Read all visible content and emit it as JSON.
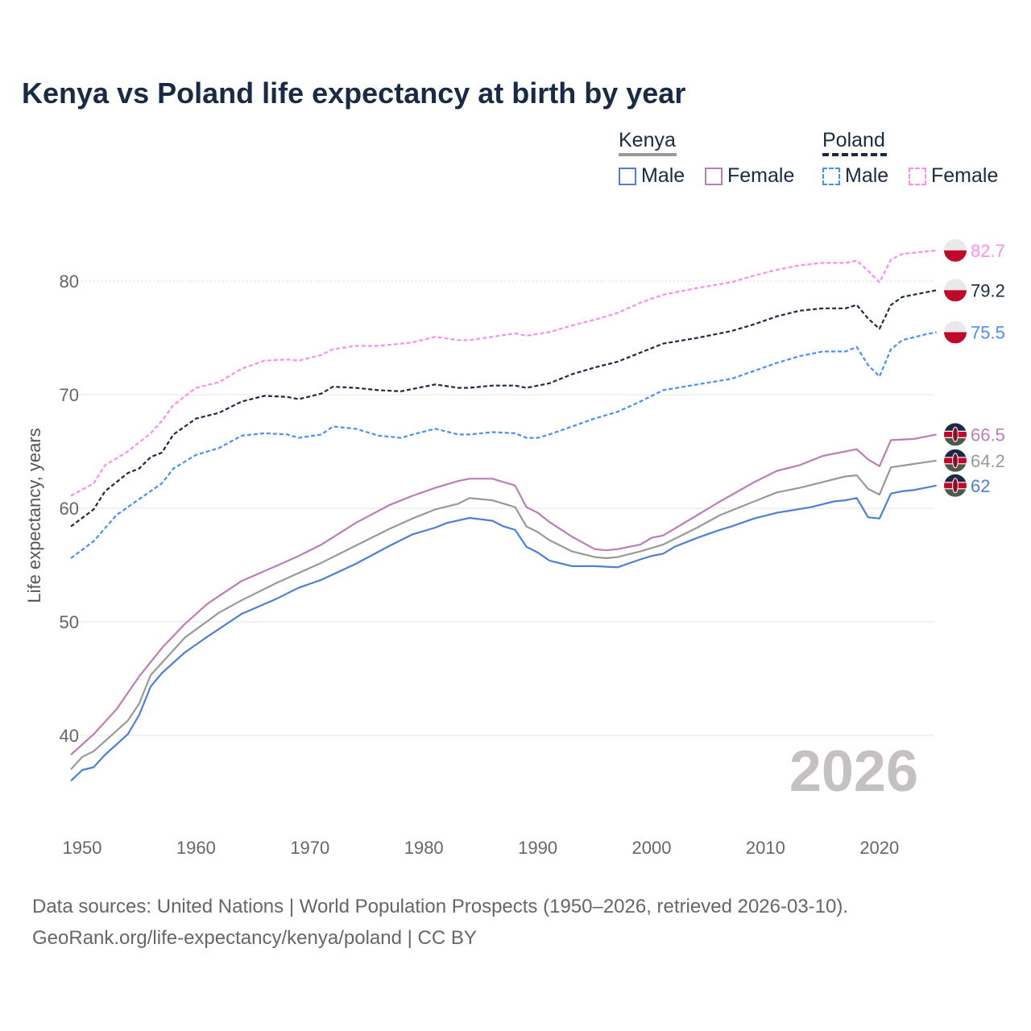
{
  "chart_data": {
    "type": "line",
    "title": "Kenya vs Poland life expectancy at birth by year",
    "ylabel": "Life expectancy, years",
    "xlabel": "",
    "xlim": [
      1950,
      2026
    ],
    "ylim": [
      33,
      86
    ],
    "x_ticks": [
      1950,
      1960,
      1970,
      1980,
      1990,
      2000,
      2010,
      2020
    ],
    "y_ticks": [
      40,
      50,
      60,
      70,
      80
    ],
    "grid": true,
    "year_watermark": "2026",
    "legend": {
      "placement": "top-right",
      "groups": [
        {
          "name": "Kenya",
          "items": [
            "Male",
            "Female"
          ]
        },
        {
          "name": "Poland",
          "items": [
            "Male",
            "Female"
          ]
        }
      ]
    },
    "series": [
      {
        "name": "Poland Female",
        "country": "Poland",
        "color": "#f98ff0",
        "dashed": true,
        "end_label": "82.7",
        "points": [
          [
            1950,
            61.1
          ],
          [
            1952,
            62.2
          ],
          [
            1953,
            63.8
          ],
          [
            1955,
            65.0
          ],
          [
            1957,
            66.6
          ],
          [
            1958,
            67.7
          ],
          [
            1959,
            69.1
          ],
          [
            1961,
            70.6
          ],
          [
            1963,
            71.1
          ],
          [
            1965,
            72.3
          ],
          [
            1967,
            73.0
          ],
          [
            1969,
            73.1
          ],
          [
            1970,
            73.0
          ],
          [
            1972,
            73.5
          ],
          [
            1973,
            74.0
          ],
          [
            1975,
            74.3
          ],
          [
            1977,
            74.3
          ],
          [
            1979,
            74.5
          ],
          [
            1980,
            74.6
          ],
          [
            1982,
            75.1
          ],
          [
            1984,
            74.8
          ],
          [
            1985,
            74.8
          ],
          [
            1987,
            75.1
          ],
          [
            1989,
            75.4
          ],
          [
            1990,
            75.2
          ],
          [
            1992,
            75.5
          ],
          [
            1994,
            76.1
          ],
          [
            1996,
            76.6
          ],
          [
            1998,
            77.2
          ],
          [
            2000,
            78.1
          ],
          [
            2002,
            78.8
          ],
          [
            2005,
            79.4
          ],
          [
            2008,
            79.9
          ],
          [
            2010,
            80.5
          ],
          [
            2012,
            81.0
          ],
          [
            2014,
            81.4
          ],
          [
            2016,
            81.6
          ],
          [
            2018,
            81.6
          ],
          [
            2019,
            81.8
          ],
          [
            2020,
            80.9
          ],
          [
            2021,
            79.9
          ],
          [
            2022,
            81.9
          ],
          [
            2023,
            82.4
          ],
          [
            2025,
            82.6
          ],
          [
            2026,
            82.7
          ]
        ]
      },
      {
        "name": "Poland",
        "country": "Poland",
        "color": "#1b2a44",
        "dashed": true,
        "end_label": "79.2",
        "points": [
          [
            1950,
            58.4
          ],
          [
            1952,
            59.9
          ],
          [
            1953,
            61.5
          ],
          [
            1955,
            63.1
          ],
          [
            1956,
            63.5
          ],
          [
            1957,
            64.5
          ],
          [
            1958,
            64.9
          ],
          [
            1959,
            66.5
          ],
          [
            1961,
            67.9
          ],
          [
            1963,
            68.4
          ],
          [
            1965,
            69.4
          ],
          [
            1967,
            69.9
          ],
          [
            1969,
            69.8
          ],
          [
            1970,
            69.6
          ],
          [
            1972,
            70.1
          ],
          [
            1973,
            70.7
          ],
          [
            1975,
            70.6
          ],
          [
            1977,
            70.4
          ],
          [
            1979,
            70.3
          ],
          [
            1980,
            70.5
          ],
          [
            1982,
            70.9
          ],
          [
            1984,
            70.6
          ],
          [
            1985,
            70.6
          ],
          [
            1987,
            70.8
          ],
          [
            1989,
            70.8
          ],
          [
            1990,
            70.6
          ],
          [
            1992,
            71.0
          ],
          [
            1994,
            71.8
          ],
          [
            1996,
            72.4
          ],
          [
            1998,
            72.9
          ],
          [
            2000,
            73.7
          ],
          [
            2002,
            74.5
          ],
          [
            2005,
            75.0
          ],
          [
            2008,
            75.6
          ],
          [
            2010,
            76.2
          ],
          [
            2012,
            76.9
          ],
          [
            2014,
            77.4
          ],
          [
            2016,
            77.6
          ],
          [
            2018,
            77.6
          ],
          [
            2019,
            77.9
          ],
          [
            2020,
            76.7
          ],
          [
            2021,
            75.8
          ],
          [
            2022,
            77.9
          ],
          [
            2023,
            78.6
          ],
          [
            2025,
            79.0
          ],
          [
            2026,
            79.2
          ]
        ]
      },
      {
        "name": "Poland Male",
        "country": "Poland",
        "color": "#4b8ef7",
        "dashed": true,
        "end_label": "75.5",
        "points": [
          [
            1950,
            55.6
          ],
          [
            1952,
            57.1
          ],
          [
            1954,
            59.4
          ],
          [
            1956,
            60.8
          ],
          [
            1958,
            62.2
          ],
          [
            1959,
            63.5
          ],
          [
            1961,
            64.7
          ],
          [
            1963,
            65.3
          ],
          [
            1965,
            66.4
          ],
          [
            1967,
            66.6
          ],
          [
            1969,
            66.5
          ],
          [
            1970,
            66.2
          ],
          [
            1972,
            66.5
          ],
          [
            1973,
            67.2
          ],
          [
            1975,
            67.0
          ],
          [
            1977,
            66.4
          ],
          [
            1979,
            66.2
          ],
          [
            1980,
            66.5
          ],
          [
            1982,
            67.0
          ],
          [
            1984,
            66.5
          ],
          [
            1985,
            66.5
          ],
          [
            1987,
            66.7
          ],
          [
            1989,
            66.6
          ],
          [
            1990,
            66.2
          ],
          [
            1991,
            66.2
          ],
          [
            1992,
            66.5
          ],
          [
            1994,
            67.2
          ],
          [
            1996,
            67.9
          ],
          [
            1998,
            68.5
          ],
          [
            2000,
            69.4
          ],
          [
            2002,
            70.4
          ],
          [
            2005,
            70.9
          ],
          [
            2008,
            71.4
          ],
          [
            2010,
            72.1
          ],
          [
            2012,
            72.8
          ],
          [
            2014,
            73.4
          ],
          [
            2016,
            73.8
          ],
          [
            2018,
            73.8
          ],
          [
            2019,
            74.2
          ],
          [
            2020,
            72.6
          ],
          [
            2021,
            71.6
          ],
          [
            2022,
            74.0
          ],
          [
            2023,
            74.8
          ],
          [
            2025,
            75.3
          ],
          [
            2026,
            75.5
          ]
        ]
      },
      {
        "name": "Kenya Female",
        "country": "Kenya",
        "color": "#bb7eb5",
        "dashed": false,
        "end_label": "66.5",
        "points": [
          [
            1950,
            38.3
          ],
          [
            1952,
            40.1
          ],
          [
            1954,
            42.3
          ],
          [
            1956,
            45.2
          ],
          [
            1958,
            47.7
          ],
          [
            1960,
            49.8
          ],
          [
            1962,
            51.6
          ],
          [
            1965,
            53.6
          ],
          [
            1968,
            54.9
          ],
          [
            1970,
            55.8
          ],
          [
            1972,
            56.8
          ],
          [
            1975,
            58.7
          ],
          [
            1978,
            60.3
          ],
          [
            1980,
            61.1
          ],
          [
            1982,
            61.8
          ],
          [
            1984,
            62.4
          ],
          [
            1985,
            62.6
          ],
          [
            1987,
            62.6
          ],
          [
            1989,
            62.0
          ],
          [
            1990,
            60.1
          ],
          [
            1991,
            59.6
          ],
          [
            1992,
            58.8
          ],
          [
            1994,
            57.5
          ],
          [
            1996,
            56.4
          ],
          [
            1997,
            56.3
          ],
          [
            1998,
            56.4
          ],
          [
            2000,
            56.8
          ],
          [
            2001,
            57.4
          ],
          [
            2002,
            57.6
          ],
          [
            2005,
            59.4
          ],
          [
            2007,
            60.6
          ],
          [
            2010,
            62.3
          ],
          [
            2012,
            63.3
          ],
          [
            2014,
            63.8
          ],
          [
            2016,
            64.6
          ],
          [
            2018,
            65.0
          ],
          [
            2019,
            65.2
          ],
          [
            2020,
            64.3
          ],
          [
            2021,
            63.7
          ],
          [
            2022,
            66.0
          ],
          [
            2024,
            66.1
          ],
          [
            2026,
            66.5
          ]
        ]
      },
      {
        "name": "Kenya",
        "country": "Kenya",
        "color": "#999999",
        "dashed": false,
        "end_label": "64.2",
        "points": [
          [
            1950,
            37.0
          ],
          [
            1951,
            38.1
          ],
          [
            1952,
            38.6
          ],
          [
            1955,
            41.3
          ],
          [
            1956,
            42.8
          ],
          [
            1957,
            45.3
          ],
          [
            1960,
            48.6
          ],
          [
            1963,
            50.8
          ],
          [
            1965,
            51.9
          ],
          [
            1968,
            53.4
          ],
          [
            1970,
            54.3
          ],
          [
            1972,
            55.2
          ],
          [
            1975,
            56.7
          ],
          [
            1978,
            58.2
          ],
          [
            1980,
            59.1
          ],
          [
            1982,
            59.9
          ],
          [
            1984,
            60.4
          ],
          [
            1985,
            60.9
          ],
          [
            1987,
            60.7
          ],
          [
            1989,
            60.1
          ],
          [
            1990,
            58.4
          ],
          [
            1991,
            57.9
          ],
          [
            1992,
            57.2
          ],
          [
            1994,
            56.2
          ],
          [
            1996,
            55.7
          ],
          [
            1997,
            55.6
          ],
          [
            1998,
            55.7
          ],
          [
            2000,
            56.2
          ],
          [
            2002,
            56.8
          ],
          [
            2005,
            58.3
          ],
          [
            2007,
            59.4
          ],
          [
            2010,
            60.6
          ],
          [
            2012,
            61.4
          ],
          [
            2014,
            61.8
          ],
          [
            2016,
            62.3
          ],
          [
            2018,
            62.8
          ],
          [
            2019,
            62.9
          ],
          [
            2020,
            61.7
          ],
          [
            2021,
            61.2
          ],
          [
            2022,
            63.6
          ],
          [
            2024,
            63.9
          ],
          [
            2026,
            64.2
          ]
        ]
      },
      {
        "name": "Kenya Male",
        "country": "Kenya",
        "color": "#4f7fd4",
        "dashed": false,
        "end_label": "62",
        "points": [
          [
            1950,
            36.0
          ],
          [
            1951,
            36.95
          ],
          [
            1952,
            37.2
          ],
          [
            1953,
            38.3
          ],
          [
            1955,
            40.1
          ],
          [
            1956,
            41.8
          ],
          [
            1957,
            44.3
          ],
          [
            1958,
            45.5
          ],
          [
            1960,
            47.3
          ],
          [
            1962,
            48.7
          ],
          [
            1965,
            50.7
          ],
          [
            1968,
            52.0
          ],
          [
            1970,
            53.0
          ],
          [
            1972,
            53.7
          ],
          [
            1975,
            55.1
          ],
          [
            1978,
            56.7
          ],
          [
            1980,
            57.7
          ],
          [
            1982,
            58.3
          ],
          [
            1983,
            58.7
          ],
          [
            1985,
            59.15
          ],
          [
            1987,
            58.9
          ],
          [
            1988,
            58.4
          ],
          [
            1989,
            58.1
          ],
          [
            1990,
            56.6
          ],
          [
            1991,
            56.1
          ],
          [
            1992,
            55.4
          ],
          [
            1994,
            54.9
          ],
          [
            1996,
            54.9
          ],
          [
            1998,
            54.8
          ],
          [
            2000,
            55.5
          ],
          [
            2001,
            55.8
          ],
          [
            2002,
            56.0
          ],
          [
            2003,
            56.6
          ],
          [
            2005,
            57.4
          ],
          [
            2007,
            58.1
          ],
          [
            2008,
            58.4
          ],
          [
            2010,
            59.1
          ],
          [
            2012,
            59.6
          ],
          [
            2015,
            60.1
          ],
          [
            2017,
            60.6
          ],
          [
            2018,
            60.7
          ],
          [
            2019,
            60.9
          ],
          [
            2020,
            59.2
          ],
          [
            2021,
            59.1
          ],
          [
            2022,
            61.3
          ],
          [
            2023,
            61.5
          ],
          [
            2024,
            61.6
          ],
          [
            2026,
            62.0
          ]
        ]
      }
    ]
  },
  "legend": {
    "kenya": "Kenya",
    "poland": "Poland",
    "kenya_male": "Male",
    "kenya_female": "Female",
    "poland_male": "Male",
    "poland_female": "Female",
    "colors": {
      "kenya_male": "#4f7fd4",
      "kenya_female": "#bb7eb5",
      "poland_male": "#4b8ef7",
      "poland_female": "#f98ff0",
      "kenya_line": "#999999",
      "poland_line": "#1b2a44"
    }
  },
  "source": {
    "line1": "Data sources: United Nations | World Population Prospects (1950–2026, retrieved 2026-03-10).",
    "line2": "GeoRank.org/life-expectancy/kenya/poland | CC BY"
  }
}
